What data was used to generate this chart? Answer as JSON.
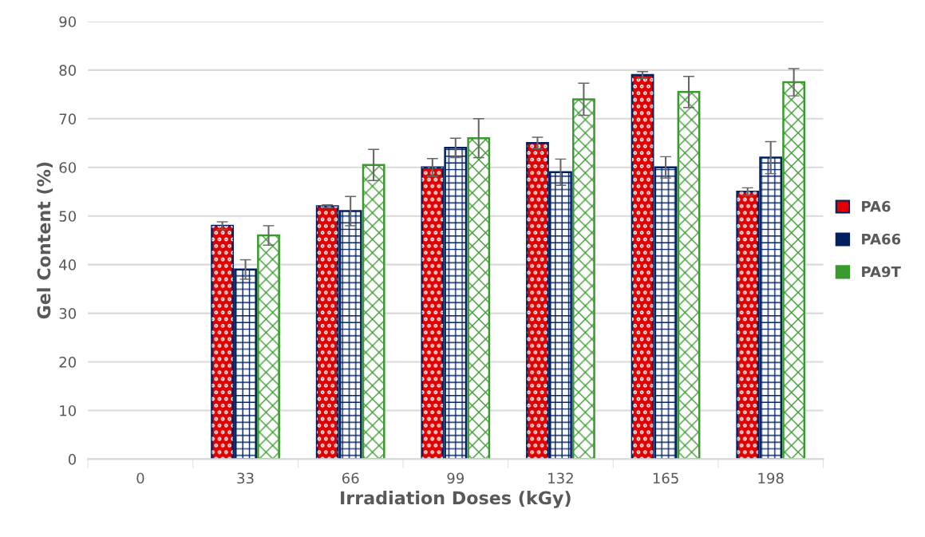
{
  "chart_data": {
    "type": "bar",
    "xlabel": "Irradiation Doses (kGy)",
    "ylabel": "Gel Content (%)",
    "categories": [
      "0",
      "33",
      "66",
      "99",
      "132",
      "165",
      "198"
    ],
    "series": [
      {
        "name": "PA6",
        "color": "#e00000",
        "values": [
          null,
          48,
          52,
          60,
          65,
          79,
          55
        ],
        "errors": [
          null,
          0.8,
          0.3,
          1.8,
          1.2,
          0.7,
          0.8
        ]
      },
      {
        "name": "PA66",
        "color": "#002060",
        "values": [
          null,
          39,
          51,
          64,
          59,
          60,
          62
        ],
        "errors": [
          null,
          2,
          3,
          2,
          2.7,
          2.2,
          3.3
        ]
      },
      {
        "name": "PA9T",
        "color": "#3a9a2e",
        "values": [
          null,
          46,
          60.5,
          66,
          74,
          75.5,
          77.5
        ],
        "errors": [
          null,
          2,
          3.2,
          4,
          3.3,
          3.2,
          2.8
        ]
      }
    ],
    "ylim": [
      0,
      90
    ],
    "yticks": [
      0,
      10,
      20,
      30,
      40,
      50,
      60,
      70,
      80,
      90
    ],
    "grid": "y",
    "legend": "right"
  }
}
